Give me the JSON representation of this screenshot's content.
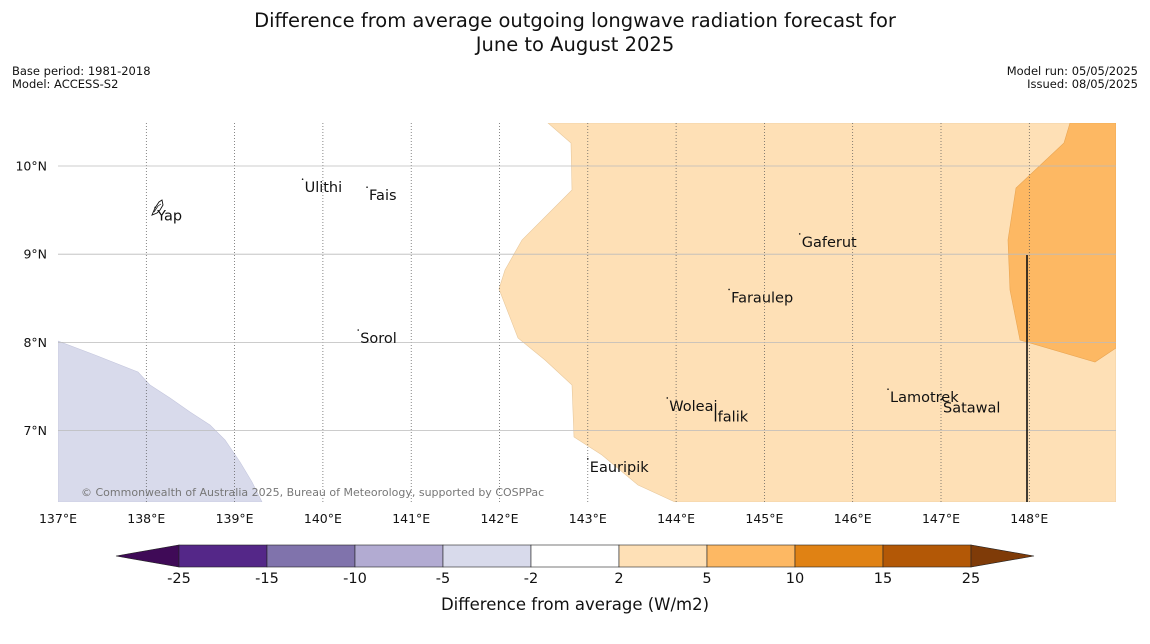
{
  "title_line1": "Difference from average outgoing longwave radiation forecast for",
  "title_line2": "June to August 2025",
  "base_period": "Base period: 1981-2018",
  "model": "Model: ACCESS-S2",
  "model_run": "Model run: 05/05/2025",
  "issued": "Issued: 08/05/2025",
  "copyright": "© Commonwealth of Australia 2025, Bureau of Meteorology, supported by COSPPac",
  "lon_ticks": [
    "137°E",
    "138°E",
    "139°E",
    "140°E",
    "141°E",
    "142°E",
    "143°E",
    "144°E",
    "145°E",
    "146°E",
    "147°E",
    "148°E"
  ],
  "lat_ticks": [
    "10°N",
    "9°N",
    "8°N",
    "7°N"
  ],
  "places": [
    {
      "name": "Ulithi",
      "lon": 139.77,
      "lat": 9.85
    },
    {
      "name": "Fais",
      "lon": 140.5,
      "lat": 9.76
    },
    {
      "name": "Yap",
      "lon": 138.1,
      "lat": 9.53
    },
    {
      "name": "Gaferut",
      "lon": 145.4,
      "lat": 9.23
    },
    {
      "name": "Faraulep",
      "lon": 144.6,
      "lat": 8.6
    },
    {
      "name": "Sorol",
      "lon": 140.4,
      "lat": 8.14
    },
    {
      "name": "Woleai",
      "lon": 143.9,
      "lat": 7.37
    },
    {
      "name": "Ifalik",
      "lon": 144.4,
      "lat": 7.25
    },
    {
      "name": "Lamotrek",
      "lon": 146.4,
      "lat": 7.47
    },
    {
      "name": "Satawal",
      "lon": 147.0,
      "lat": 7.35
    },
    {
      "name": "Eauripik",
      "lon": 143.0,
      "lat": 6.68
    }
  ],
  "colorbar": {
    "label": "Difference from average (W/m2)",
    "ticks": [
      "-25",
      "-15",
      "-10",
      "-5",
      "-2",
      "2",
      "5",
      "10",
      "15",
      "25"
    ],
    "colors": [
      "#3f0a57",
      "#542788",
      "#8073ac",
      "#b2abd2",
      "#d8daeb",
      "#ffffff",
      "#fee0b6",
      "#fdb863",
      "#e08214",
      "#b35806",
      "#7f3b08"
    ]
  }
}
